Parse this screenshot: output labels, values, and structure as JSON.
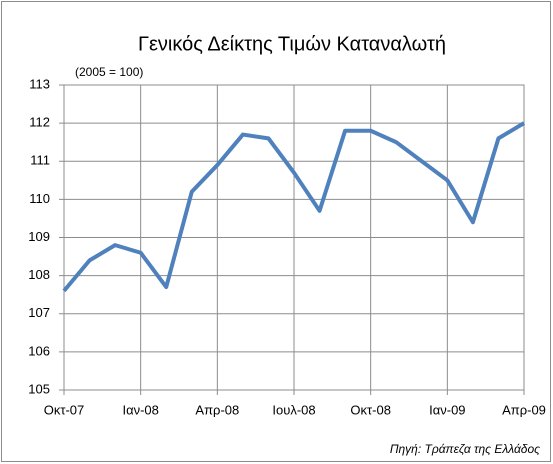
{
  "chart_data": {
    "type": "line",
    "title": "Γενικός Δείκτης Τιμών Καταναλωτή",
    "subtitle": "(2005 = 100)",
    "source": "Πηγή: Τράπεζα της Ελλάδος",
    "categories": [
      "Οκτ-07",
      null,
      null,
      "Ιαν-08",
      null,
      null,
      "Απρ-08",
      null,
      null,
      "Ιουλ-08",
      null,
      null,
      "Οκτ-08",
      null,
      null,
      "Ιαν-09",
      null,
      null,
      "Απρ-09"
    ],
    "values": [
      107.6,
      108.4,
      108.8,
      108.6,
      107.7,
      110.2,
      110.9,
      111.7,
      111.6,
      110.7,
      109.7,
      111.8,
      111.8,
      111.5,
      111.0,
      110.5,
      109.4,
      111.6,
      112.0
    ],
    "color": "#4f81bd",
    "ylim": [
      105,
      113
    ],
    "yticks": [
      105,
      106,
      107,
      108,
      109,
      110,
      111,
      112,
      113
    ],
    "grid": true
  }
}
